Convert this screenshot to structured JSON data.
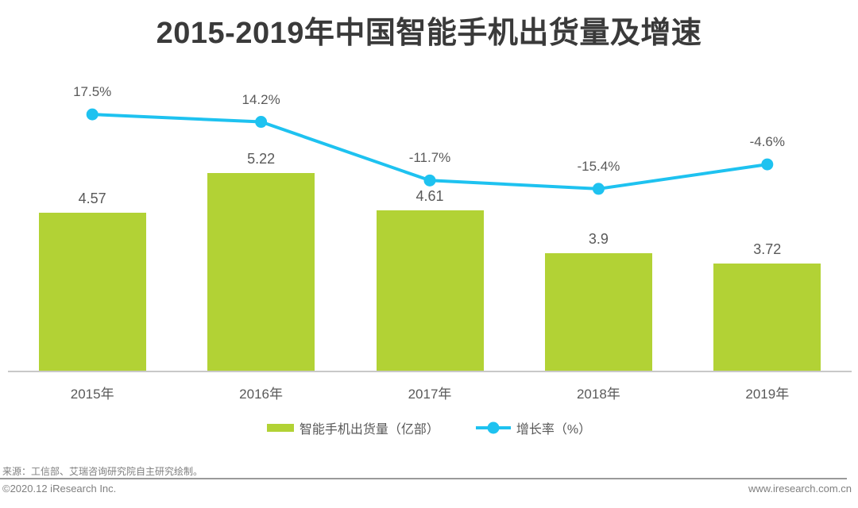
{
  "title": "2015-2019年中国智能手机出货量及增速",
  "chart_data": {
    "type": "combo",
    "title": "2015-2019年中国智能手机出货量及增速",
    "categories": [
      "2015年",
      "2016年",
      "2017年",
      "2018年",
      "2019年"
    ],
    "series": [
      {
        "name": "智能手机出货量（亿部）",
        "type": "bar",
        "values": [
          4.57,
          5.22,
          4.61,
          3.9,
          3.72
        ],
        "labels": [
          "4.57",
          "5.22",
          "4.61",
          "3.9",
          "3.72"
        ],
        "color": "#B2D235"
      },
      {
        "name": "增长率（%）",
        "type": "line",
        "values": [
          17.5,
          14.2,
          -11.7,
          -15.4,
          -4.6
        ],
        "labels": [
          "17.5%",
          "14.2%",
          "-11.7%",
          "-15.4%",
          "-4.6%"
        ],
        "color": "#1EC2F0"
      }
    ],
    "xlabel": "",
    "ylabel": "",
    "grid": false,
    "legend_position": "bottom",
    "data_labels_visible": true
  },
  "footer": {
    "source_note": "来源：工信部、艾瑞咨询研究院自主研究绘制。",
    "copyright": "©2020.12 iResearch Inc.",
    "website": "www.iresearch.com.cn"
  },
  "colors": {
    "bar": "#B2D235",
    "line": "#1EC2F0",
    "value_label_text": "#595959",
    "title_text": "#3A3A3A",
    "axis_line": "#C8C8C8",
    "footer_text": "#7F7F7F"
  }
}
